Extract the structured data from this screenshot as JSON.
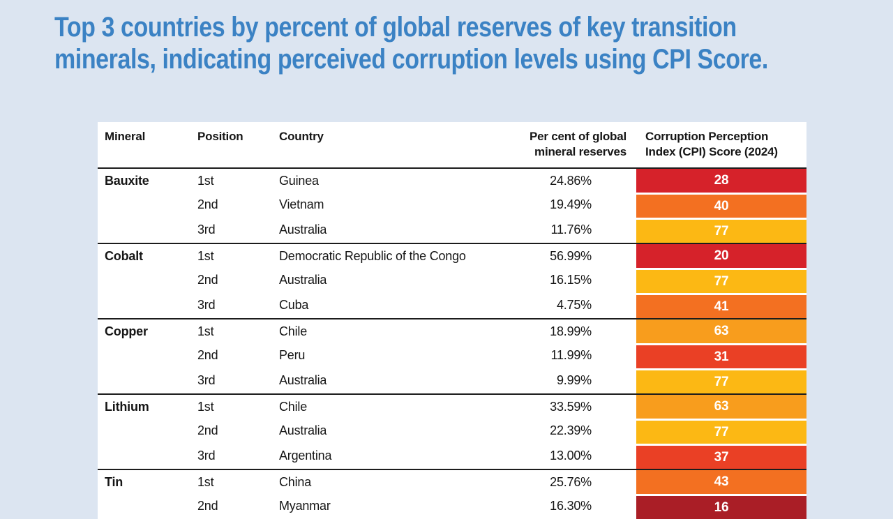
{
  "title": {
    "line1": "Top 3 countries by percent of global reserves of key transition",
    "line2": "minerals, indicating perceived corruption levels using CPI Score.",
    "color": "#3b82c4"
  },
  "colors": {
    "page_background": "#dce5f1",
    "table_background": "#ffffff",
    "cpi_dark_red": "#aa1e26",
    "cpi_red": "#d6222a",
    "cpi_red_orange": "#ea4025",
    "cpi_orange": "#f37021",
    "cpi_light_orange": "#f89d1d",
    "cpi_amber": "#fcb814",
    "separator_line": "#1c1c1c"
  },
  "table": {
    "headers": {
      "mineral": "Mineral",
      "position": "Position",
      "country": "Country",
      "percent_line1": "Per cent of global",
      "percent_line2": "mineral reserves",
      "cpi_line1": "Corruption Perception",
      "cpi_line2": "Index (CPI) Score (2024)"
    }
  },
  "chart_data": {
    "type": "table",
    "title": "Top 3 countries by percent of global reserves of key transition minerals, indicating perceived corruption levels using CPI Score.",
    "columns": [
      "Mineral",
      "Position",
      "Country",
      "Per cent of global mineral reserves",
      "Corruption Perception Index (CPI) Score (2024)"
    ],
    "groups": [
      {
        "mineral": "Bauxite",
        "rows": [
          {
            "position": "1st",
            "country": "Guinea",
            "percent": "24.86%",
            "cpi": "28",
            "cpi_color": "#d6222a"
          },
          {
            "position": "2nd",
            "country": "Vietnam",
            "percent": "19.49%",
            "cpi": "40",
            "cpi_color": "#f37021"
          },
          {
            "position": "3rd",
            "country": "Australia",
            "percent": "11.76%",
            "cpi": "77",
            "cpi_color": "#fcb814"
          }
        ]
      },
      {
        "mineral": "Cobalt",
        "rows": [
          {
            "position": "1st",
            "country": "Democratic Republic of the Congo",
            "percent": "56.99%",
            "cpi": "20",
            "cpi_color": "#d6222a"
          },
          {
            "position": "2nd",
            "country": "Australia",
            "percent": "16.15%",
            "cpi": "77",
            "cpi_color": "#fcb814"
          },
          {
            "position": "3rd",
            "country": "Cuba",
            "percent": "4.75%",
            "cpi": "41",
            "cpi_color": "#f37021"
          }
        ]
      },
      {
        "mineral": "Copper",
        "rows": [
          {
            "position": "1st",
            "country": "Chile",
            "percent": "18.99%",
            "cpi": "63",
            "cpi_color": "#f89d1d"
          },
          {
            "position": "2nd",
            "country": "Peru",
            "percent": "11.99%",
            "cpi": "31",
            "cpi_color": "#ea4025"
          },
          {
            "position": "3rd",
            "country": "Australia",
            "percent": "9.99%",
            "cpi": "77",
            "cpi_color": "#fcb814"
          }
        ]
      },
      {
        "mineral": "Lithium",
        "rows": [
          {
            "position": "1st",
            "country": "Chile",
            "percent": "33.59%",
            "cpi": "63",
            "cpi_color": "#f89d1d"
          },
          {
            "position": "2nd",
            "country": "Australia",
            "percent": "22.39%",
            "cpi": "77",
            "cpi_color": "#fcb814"
          },
          {
            "position": "3rd",
            "country": "Argentina",
            "percent": "13.00%",
            "cpi": "37",
            "cpi_color": "#ea4025"
          }
        ]
      },
      {
        "mineral": "Tin",
        "rows": [
          {
            "position": "1st",
            "country": "China",
            "percent": "25.76%",
            "cpi": "43",
            "cpi_color": "#f37021"
          },
          {
            "position": "2nd",
            "country": "Myanmar",
            "percent": "16.30%",
            "cpi": "16",
            "cpi_color": "#aa1e26"
          }
        ]
      }
    ]
  }
}
